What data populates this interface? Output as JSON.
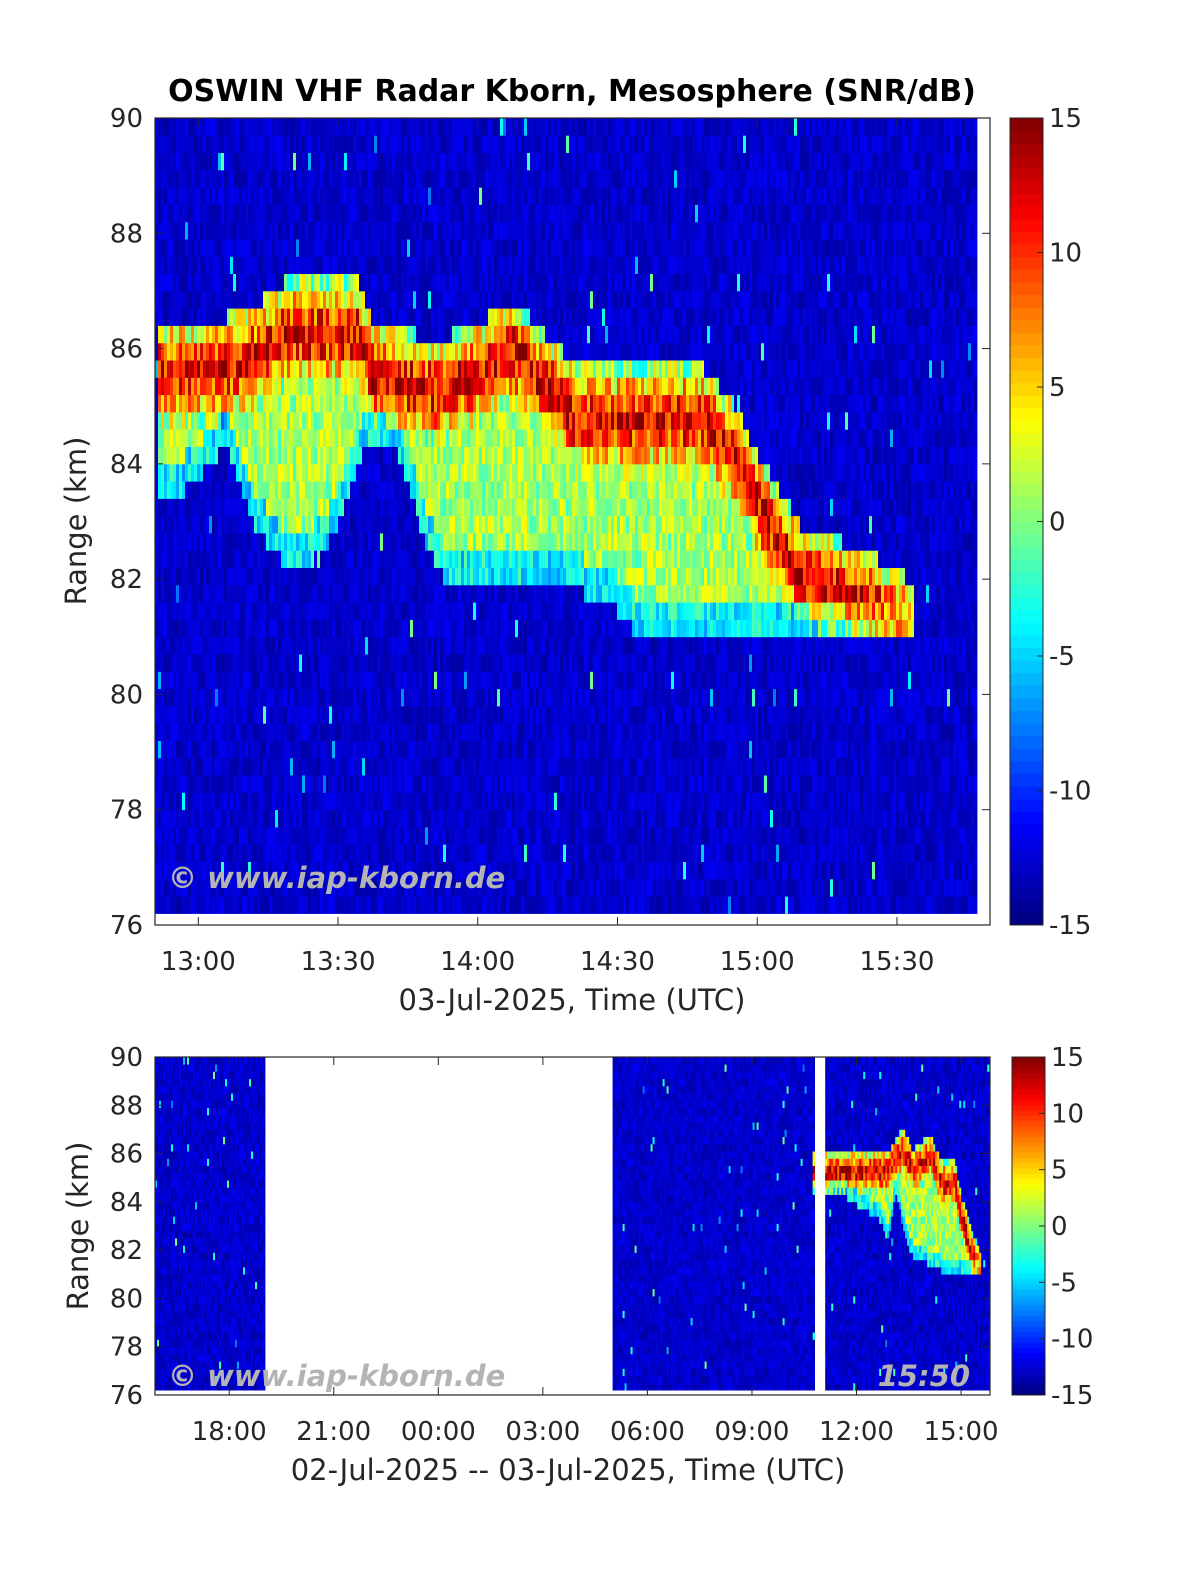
{
  "chart_data": [
    {
      "type": "heatmap",
      "title": "OSWIN VHF Radar Kborn, Mesosphere (SNR/dB)",
      "xlabel": "03-Jul-2025, Time (UTC)",
      "ylabel": "Range (km)",
      "xlim_hours": [
        12.845,
        15.833
      ],
      "data_end_hours": 15.78,
      "ylim": [
        76,
        90
      ],
      "yticks": [
        "76",
        "78",
        "80",
        "82",
        "84",
        "86",
        "88",
        "90"
      ],
      "xticks": [
        {
          "h": 13.0,
          "label": "13:00"
        },
        {
          "h": 13.5,
          "label": "13:30"
        },
        {
          "h": 14.0,
          "label": "14:00"
        },
        {
          "h": 14.5,
          "label": "14:30"
        },
        {
          "h": 15.0,
          "label": "15:00"
        },
        {
          "h": 15.5,
          "label": "15:30"
        }
      ],
      "colorbar": {
        "clim": [
          -15,
          15
        ],
        "ticks": [
          "-15",
          "-10",
          "-5",
          "0",
          "5",
          "10",
          "15"
        ]
      },
      "watermark": "© www.iap-kborn.de",
      "echo_top_km": [
        [
          12.85,
          86.3
        ],
        [
          13.1,
          86.4
        ],
        [
          13.2,
          86.6
        ],
        [
          13.3,
          87.0
        ],
        [
          13.57,
          87.0
        ],
        [
          13.62,
          86.3
        ],
        [
          13.85,
          86.0
        ],
        [
          14.0,
          86.3
        ],
        [
          14.12,
          86.7
        ],
        [
          14.22,
          86.2
        ],
        [
          14.35,
          85.5
        ],
        [
          14.8,
          85.5
        ],
        [
          14.9,
          85.0
        ],
        [
          15.0,
          84.0
        ],
        [
          15.15,
          82.8
        ],
        [
          15.4,
          82.3
        ],
        [
          15.55,
          81.8
        ],
        [
          15.56,
          81.0
        ]
      ],
      "echo_bottom_km": [
        [
          12.85,
          83.4
        ],
        [
          12.98,
          83.8
        ],
        [
          13.1,
          84.5
        ],
        [
          13.2,
          83.0
        ],
        [
          13.32,
          82.3
        ],
        [
          13.45,
          82.6
        ],
        [
          13.6,
          84.5
        ],
        [
          13.7,
          84.5
        ],
        [
          13.82,
          82.6
        ],
        [
          13.9,
          82.0
        ],
        [
          14.3,
          82.0
        ],
        [
          14.45,
          81.8
        ],
        [
          14.55,
          81.3
        ],
        [
          15.3,
          81.1
        ],
        [
          15.56,
          81.1
        ]
      ],
      "peak_snr_db": 15,
      "noise_snr_db": -14
    },
    {
      "type": "heatmap",
      "xlabel": "02-Jul-2025 -- 03-Jul-2025, Time (UTC)",
      "ylabel": "Range (km)",
      "xlim_hours": [
        15.87,
        39.83
      ],
      "data_segments_hours": [
        [
          15.87,
          19.0
        ],
        [
          29.0,
          34.78
        ],
        [
          35.1,
          39.75
        ]
      ],
      "ylim": [
        76,
        90
      ],
      "yticks": [
        "76",
        "78",
        "80",
        "82",
        "84",
        "86",
        "88",
        "90"
      ],
      "xticks": [
        {
          "h": 18,
          "label": "18:00"
        },
        {
          "h": 21,
          "label": "21:00"
        },
        {
          "h": 24,
          "label": "00:00"
        },
        {
          "h": 27,
          "label": "03:00"
        },
        {
          "h": 30,
          "label": "06:00"
        },
        {
          "h": 33,
          "label": "09:00"
        },
        {
          "h": 36,
          "label": "12:00"
        },
        {
          "h": 39,
          "label": "15:00"
        }
      ],
      "colorbar": {
        "clim": [
          -15,
          15
        ],
        "ticks": [
          "-15",
          "-10",
          "-5",
          "0",
          "5",
          "10",
          "15"
        ]
      },
      "watermark": "© www.iap-kborn.de",
      "time_stamp": "15:50",
      "echo_top_km": [
        [
          34.7,
          85.9
        ],
        [
          36.0,
          86.0
        ],
        [
          36.9,
          86.0
        ],
        [
          37.3,
          86.9
        ],
        [
          37.6,
          86.0
        ],
        [
          38.1,
          86.7
        ],
        [
          38.4,
          85.5
        ],
        [
          38.8,
          85.5
        ],
        [
          39.0,
          84.0
        ],
        [
          39.3,
          82.5
        ],
        [
          39.55,
          81.8
        ]
      ],
      "echo_bottom_km": [
        [
          34.7,
          84.5
        ],
        [
          35.5,
          84.5
        ],
        [
          36.0,
          84.0
        ],
        [
          36.6,
          83.5
        ],
        [
          36.9,
          82.5
        ],
        [
          37.1,
          84.5
        ],
        [
          37.5,
          82.0
        ],
        [
          38.0,
          81.6
        ],
        [
          38.5,
          81.2
        ],
        [
          39.55,
          81.0
        ]
      ]
    }
  ]
}
